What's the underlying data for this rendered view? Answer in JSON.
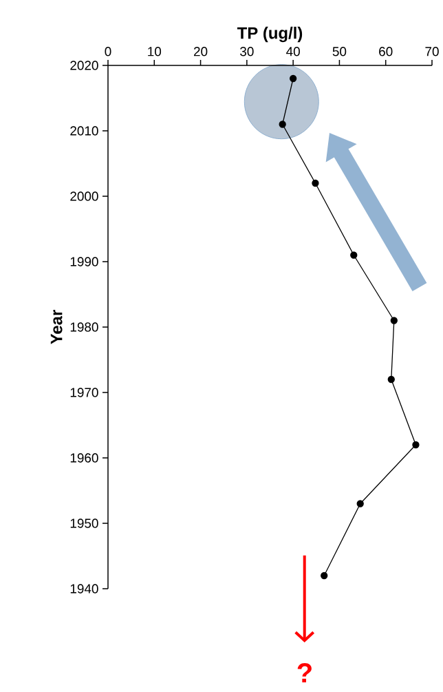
{
  "chart_data": {
    "type": "line",
    "xlabel": "TP (ug/l)",
    "ylabel": "Year",
    "x": [
      40,
      37.7,
      44.8,
      53.1,
      61.8,
      61.2,
      66.5,
      54.5,
      46.7
    ],
    "values": [
      2018,
      2011,
      2002,
      1991,
      1981,
      1972,
      1962,
      1953,
      1942
    ],
    "color": "#000000",
    "marker": "circle",
    "line_style": "solid",
    "xlim": [
      0,
      70
    ],
    "xticks": [
      0,
      10,
      20,
      30,
      40,
      50,
      60,
      70
    ],
    "ylim": [
      1940,
      2020
    ],
    "yticks": [
      1940,
      1950,
      1960,
      1970,
      1980,
      1990,
      2000,
      2010,
      2020
    ],
    "annotations": [
      "?"
    ]
  }
}
